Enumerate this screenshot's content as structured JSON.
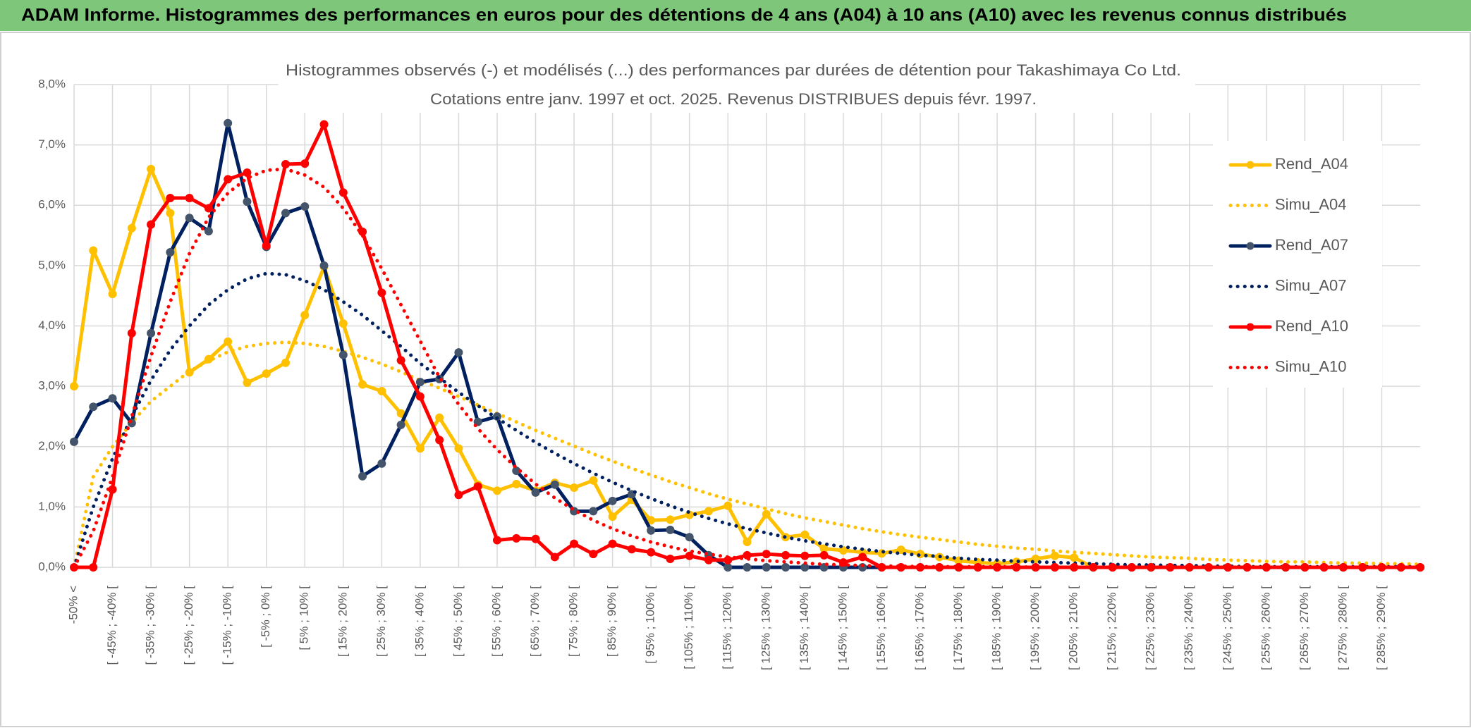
{
  "header": {
    "title": "ADAM Informe. Histogrammes des performances en euros pour des détentions de 4 ans (A04) à 10 ans (A10) avec les revenus connus distribués"
  },
  "chart_data": {
    "type": "line",
    "title": "Histogrammes observés (-) et modélisés (...) des performances par durées de détention pour Takashimaya Co Ltd.",
    "subtitle": "Cotations entre janv. 1997 et oct. 2025. Revenus DISTRIBUES depuis févr. 1997.",
    "categories": [
      "-50% <",
      null,
      "[ -45% ; -40% [",
      null,
      "[ -35% ; -30% [",
      null,
      "[ -25% ; -20% [",
      null,
      "[ -15% ; -10% [",
      null,
      "[ -5% ; 0% [",
      null,
      "[ 5% ; 10% [",
      null,
      "[ 15% ; 20% [",
      null,
      "[ 25% ; 30% [",
      null,
      "[ 35% ; 40% [",
      null,
      "[ 45% ; 50% [",
      null,
      "[ 55% ; 60% [",
      null,
      "[ 65% ; 70% [",
      null,
      "[ 75% ; 80% [",
      null,
      "[ 85% ; 90% [",
      null,
      "[ 95% ; 100% [",
      null,
      "[ 105% ; 110% [",
      null,
      "[ 115% ; 120% [",
      null,
      "[ 125% ; 130% [",
      null,
      "[ 135% ; 140% [",
      null,
      "[ 145% ; 150% [",
      null,
      "[ 155% ; 160% [",
      null,
      "[ 165% ; 170% [",
      null,
      "[ 175% ; 180% [",
      null,
      "[ 185% ; 190% [",
      null,
      "[ 195% ; 200% [",
      null,
      "[ 205% ; 210% [",
      null,
      "[ 215% ; 220% [",
      null,
      "[ 225% ; 230% [",
      null,
      "[ 235% ; 240% [",
      null,
      "[ 245% ; 250% [",
      null,
      "[ 255% ; 260% [",
      null,
      "[ 265% ; 270% [",
      null,
      "[ 275% ; 280% [",
      null,
      "[ 285% ; 290% [",
      null,
      null
    ],
    "series": [
      {
        "name": "Rend_A04",
        "color": "#FFC000",
        "marker_color": "#FFC000",
        "style": "solid",
        "markers": true,
        "values": [
          3.0,
          5.25,
          4.53,
          5.62,
          6.6,
          5.87,
          3.23,
          3.45,
          3.74,
          3.06,
          3.21,
          3.39,
          4.18,
          4.98,
          4.04,
          3.03,
          2.92,
          2.55,
          1.97,
          2.48,
          1.97,
          1.37,
          1.27,
          1.38,
          1.27,
          1.4,
          1.32,
          1.44,
          0.84,
          1.12,
          0.78,
          0.79,
          0.87,
          0.93,
          1.02,
          0.42,
          0.88,
          0.5,
          0.54,
          0.31,
          0.28,
          0.25,
          0.23,
          0.29,
          0.22,
          0.17,
          0.11,
          0.08,
          0.06,
          0.09,
          0.14,
          0.19,
          0.16,
          0,
          0,
          0,
          0,
          0,
          0,
          0,
          0,
          0,
          0,
          0,
          0,
          0,
          0,
          0,
          0,
          0,
          0
        ]
      },
      {
        "name": "Simu_A04",
        "color": "#FFC000",
        "style": "dotted",
        "markers": false,
        "values": [
          0,
          1.5,
          2.0,
          2.4,
          2.75,
          3.0,
          3.25,
          3.42,
          3.57,
          3.66,
          3.71,
          3.73,
          3.71,
          3.66,
          3.58,
          3.48,
          3.37,
          3.24,
          3.1,
          2.97,
          2.83,
          2.69,
          2.55,
          2.41,
          2.27,
          2.14,
          2.01,
          1.88,
          1.76,
          1.64,
          1.53,
          1.42,
          1.32,
          1.22,
          1.13,
          1.05,
          0.97,
          0.89,
          0.82,
          0.76,
          0.7,
          0.64,
          0.59,
          0.54,
          0.5,
          0.46,
          0.42,
          0.38,
          0.35,
          0.32,
          0.3,
          0.27,
          0.25,
          0.23,
          0.21,
          0.19,
          0.17,
          0.16,
          0.15,
          0.13,
          0.12,
          0.11,
          0.1,
          0.09,
          0.09,
          0.08,
          0.07,
          0.07,
          0.06,
          0.06,
          0.05
        ]
      },
      {
        "name": "Rend_A07",
        "color": "#002060",
        "marker_color": "#44546A",
        "style": "solid",
        "markers": true,
        "values": [
          2.08,
          2.66,
          2.8,
          2.39,
          3.88,
          5.22,
          5.79,
          5.57,
          7.36,
          6.06,
          5.31,
          5.87,
          5.98,
          5.0,
          3.52,
          1.51,
          1.72,
          2.36,
          3.07,
          3.12,
          3.56,
          2.41,
          2.5,
          1.6,
          1.24,
          1.37,
          0.93,
          0.93,
          1.1,
          1.21,
          0.61,
          0.62,
          0.5,
          0.2,
          0,
          0,
          0,
          0,
          0,
          0,
          0,
          0,
          0,
          0,
          0,
          0,
          0,
          0,
          0,
          0,
          0,
          0,
          0,
          0,
          0,
          0,
          0,
          0,
          0,
          0,
          0,
          0,
          0,
          0,
          0,
          0,
          0,
          0,
          0,
          0,
          0
        ]
      },
      {
        "name": "Simu_A07",
        "color": "#002060",
        "style": "dotted",
        "markers": false,
        "values": [
          0,
          1.0,
          1.8,
          2.5,
          3.1,
          3.6,
          4.0,
          4.35,
          4.6,
          4.78,
          4.87,
          4.85,
          4.75,
          4.6,
          4.4,
          4.18,
          3.92,
          3.66,
          3.38,
          3.14,
          2.9,
          2.68,
          2.47,
          2.27,
          2.07,
          1.89,
          1.72,
          1.56,
          1.41,
          1.27,
          1.14,
          1.02,
          0.91,
          0.81,
          0.72,
          0.64,
          0.57,
          0.5,
          0.44,
          0.39,
          0.34,
          0.3,
          0.26,
          0.23,
          0.2,
          0.18,
          0.15,
          0.13,
          0.12,
          0.1,
          0.09,
          0.08,
          0.07,
          0.06,
          0.05,
          0.04,
          0.04,
          0.03,
          0.03,
          0.02,
          0.02,
          0.01,
          0.01,
          0.01,
          0.01,
          0.01,
          0.01,
          0.01,
          0.01,
          0.01,
          0.01
        ]
      },
      {
        "name": "Rend_A10",
        "color": "#FF0000",
        "marker_color": "#FF0000",
        "style": "solid",
        "markers": true,
        "values": [
          0,
          0,
          1.29,
          3.88,
          5.68,
          6.12,
          6.12,
          5.95,
          6.43,
          6.54,
          5.33,
          6.68,
          6.69,
          7.34,
          6.21,
          5.56,
          4.55,
          3.43,
          2.83,
          2.11,
          1.2,
          1.34,
          0.45,
          0.48,
          0.47,
          0.17,
          0.39,
          0.22,
          0.39,
          0.3,
          0.25,
          0.14,
          0.19,
          0.12,
          0.12,
          0.2,
          0.22,
          0.2,
          0.19,
          0.2,
          0.08,
          0.17,
          0,
          0,
          0,
          0,
          0,
          0,
          0,
          0,
          0,
          0,
          0,
          0,
          0,
          0,
          0,
          0,
          0,
          0,
          0,
          0,
          0,
          0,
          0,
          0,
          0,
          0,
          0,
          0,
          0
        ]
      },
      {
        "name": "Simu_A10",
        "color": "#FF0000",
        "style": "dotted",
        "markers": false,
        "values": [
          0,
          0.6,
          1.5,
          2.5,
          3.5,
          4.4,
          5.2,
          5.8,
          6.2,
          6.45,
          6.58,
          6.6,
          6.5,
          6.3,
          5.95,
          5.5,
          4.95,
          4.35,
          3.75,
          3.15,
          2.7,
          2.3,
          1.95,
          1.65,
          1.38,
          1.15,
          0.95,
          0.78,
          0.64,
          0.52,
          0.42,
          0.34,
          0.27,
          0.22,
          0.17,
          0.14,
          0.11,
          0.09,
          0.07,
          0.05,
          0.04,
          0.03,
          0.02,
          0.02,
          0.01,
          0.01,
          0.01,
          0.01,
          0.01,
          0.01,
          0,
          0,
          0,
          0,
          0,
          0,
          0,
          0,
          0,
          0,
          0,
          0,
          0,
          0,
          0,
          0,
          0,
          0,
          0,
          0,
          0
        ]
      }
    ],
    "ylim": [
      0,
      8
    ],
    "yticks": [
      {
        "value": 0,
        "label": "0,0%"
      },
      {
        "value": 1,
        "label": "1,0%"
      },
      {
        "value": 2,
        "label": "2,0%"
      },
      {
        "value": 3,
        "label": "3,0%"
      },
      {
        "value": 4,
        "label": "4,0%"
      },
      {
        "value": 5,
        "label": "5,0%"
      },
      {
        "value": 6,
        "label": "6,0%"
      },
      {
        "value": 7,
        "label": "7,0%"
      },
      {
        "value": 8,
        "label": "8,0%"
      }
    ],
    "grid": true,
    "legend": "right"
  }
}
